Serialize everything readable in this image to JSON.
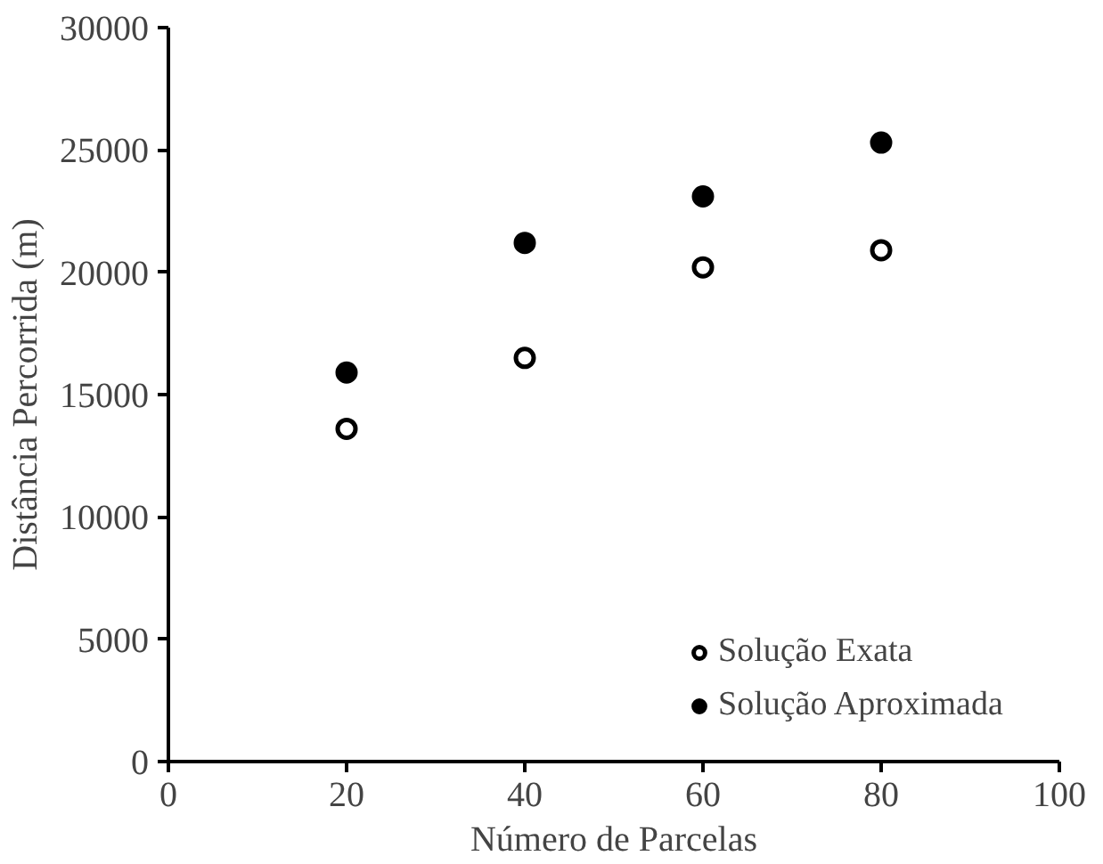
{
  "chart_data": {
    "type": "scatter",
    "xlabel": "Número de Parcelas",
    "ylabel": "Distância Percorrida (m)",
    "x": [
      20,
      40,
      60,
      80
    ],
    "series": [
      {
        "name": "Solução Exata",
        "color": "#000000",
        "marker": "circle",
        "values": [
          13600,
          16500,
          20200,
          20900
        ]
      },
      {
        "name": "Solução Aproximada",
        "color": "#000000",
        "marker": "circle",
        "values": [
          15900,
          21200,
          23100,
          25300
        ]
      }
    ],
    "xlim": [
      0,
      100
    ],
    "xticks": [
      0,
      20,
      40,
      60,
      80,
      100
    ],
    "ylim": [
      0,
      30000
    ],
    "yticks": [
      0,
      5000,
      10000,
      15000,
      20000,
      25000,
      30000
    ],
    "grid": false,
    "legend": "bottom"
  }
}
